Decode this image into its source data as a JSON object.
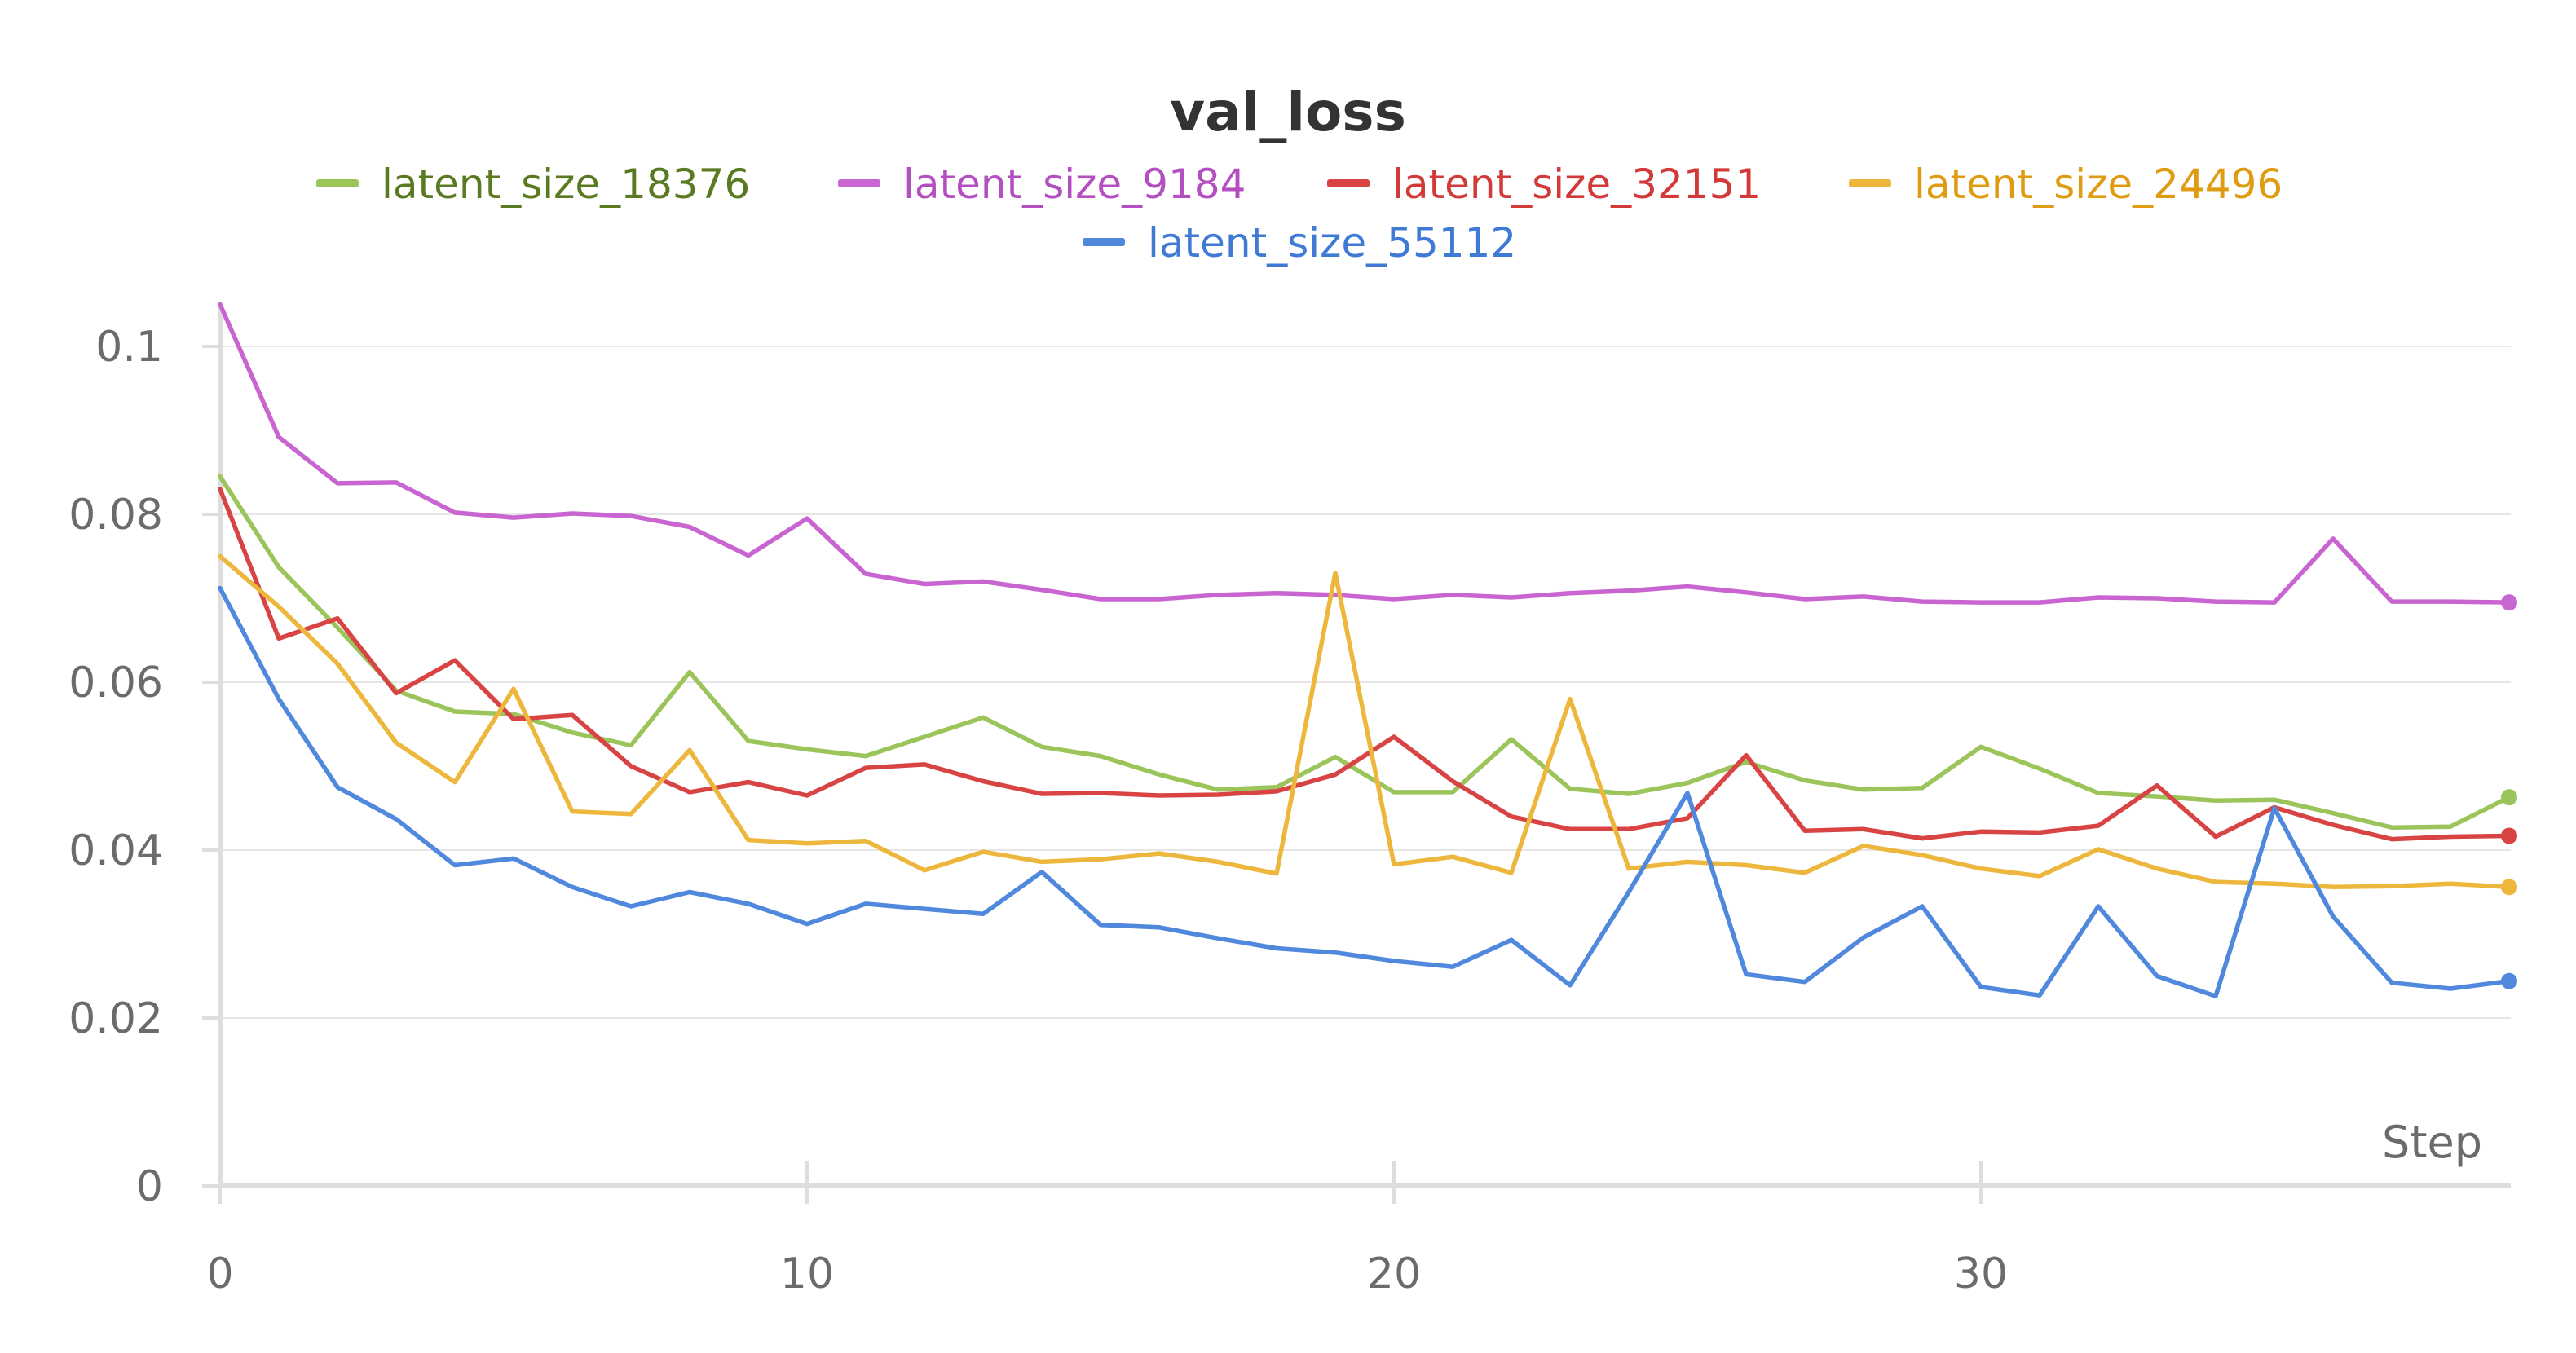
{
  "chart_data": {
    "type": "line",
    "title": "val_loss",
    "xlabel": "Step",
    "ylabel": "",
    "xlim": [
      0,
      39
    ],
    "ylim": [
      0,
      0.105
    ],
    "x_ticks": [
      0,
      10,
      20,
      30
    ],
    "x_tick_labels": [
      "0",
      "10",
      "20",
      "30"
    ],
    "y_ticks": [
      0,
      0.02,
      0.04,
      0.06,
      0.08,
      0.1
    ],
    "y_tick_labels": [
      "0",
      "0.02",
      "0.04",
      "0.06",
      "0.08",
      "0.1"
    ],
    "grid": true,
    "legend_position": "top-center",
    "x": [
      0,
      1,
      2,
      3,
      4,
      5,
      6,
      7,
      8,
      9,
      10,
      11,
      12,
      13,
      14,
      15,
      16,
      17,
      18,
      19,
      20,
      21,
      22,
      23,
      24,
      25,
      26,
      27,
      28,
      29,
      30,
      31,
      32,
      33,
      34,
      35,
      36,
      37,
      38,
      39
    ],
    "series": [
      {
        "name": "latent_size_18376",
        "color": "#9bc45a",
        "text_color": "#5a7a22",
        "values": [
          0.0845,
          0.0737,
          0.0665,
          0.059,
          0.0565,
          0.0562,
          0.054,
          0.0525,
          0.0612,
          0.053,
          0.052,
          0.0512,
          0.0535,
          0.0558,
          0.0523,
          0.0512,
          0.049,
          0.0472,
          0.0475,
          0.0511,
          0.0469,
          0.0469,
          0.0532,
          0.0473,
          0.0467,
          0.048,
          0.0505,
          0.0483,
          0.0472,
          0.0474,
          0.0523,
          0.0497,
          0.0468,
          0.0464,
          0.0459,
          0.046,
          0.0444,
          0.0427,
          0.0428,
          0.0463
        ]
      },
      {
        "name": "latent_size_9184",
        "color": "#c865d1",
        "text_color": "#b34fc0",
        "values": [
          0.105,
          0.0892,
          0.0837,
          0.0838,
          0.0802,
          0.0796,
          0.0801,
          0.0798,
          0.0785,
          0.0751,
          0.0795,
          0.0729,
          0.0717,
          0.072,
          0.071,
          0.0699,
          0.0699,
          0.0704,
          0.0706,
          0.0704,
          0.0699,
          0.0704,
          0.0701,
          0.0706,
          0.0709,
          0.0714,
          0.0707,
          0.0699,
          0.0702,
          0.0696,
          0.0695,
          0.0695,
          0.0701,
          0.07,
          0.0696,
          0.0695,
          0.0771,
          0.0696,
          0.0696,
          0.0695
        ]
      },
      {
        "name": "latent_size_32151",
        "color": "#d84444",
        "text_color": "#d23a3a",
        "values": [
          0.083,
          0.0652,
          0.0676,
          0.0587,
          0.0626,
          0.0556,
          0.0561,
          0.05,
          0.0469,
          0.0481,
          0.0465,
          0.0498,
          0.0502,
          0.0482,
          0.0467,
          0.0468,
          0.0465,
          0.0466,
          0.047,
          0.049,
          0.0535,
          0.0482,
          0.044,
          0.0425,
          0.0425,
          0.0438,
          0.0513,
          0.0423,
          0.0425,
          0.0414,
          0.0422,
          0.0421,
          0.0429,
          0.0477,
          0.0416,
          0.0451,
          0.043,
          0.0413,
          0.0416,
          0.0417
        ]
      },
      {
        "name": "latent_size_24496",
        "color": "#ecb73c",
        "text_color": "#df9c12",
        "values": [
          0.075,
          0.069,
          0.0622,
          0.0528,
          0.0481,
          0.0592,
          0.0446,
          0.0443,
          0.0519,
          0.0412,
          0.0408,
          0.0411,
          0.0376,
          0.0398,
          0.0386,
          0.0389,
          0.0396,
          0.0386,
          0.0372,
          0.073,
          0.0383,
          0.0392,
          0.0373,
          0.058,
          0.0378,
          0.0386,
          0.0382,
          0.0373,
          0.0405,
          0.0394,
          0.0378,
          0.0369,
          0.0401,
          0.0378,
          0.0362,
          0.036,
          0.0356,
          0.0357,
          0.036,
          0.0356
        ]
      },
      {
        "name": "latent_size_55112",
        "color": "#4f88dc",
        "text_color": "#3f7ad4",
        "values": [
          0.0712,
          0.058,
          0.0475,
          0.0437,
          0.0382,
          0.039,
          0.0356,
          0.0333,
          0.035,
          0.0336,
          0.0312,
          0.0336,
          0.033,
          0.0324,
          0.0374,
          0.0311,
          0.0308,
          0.0295,
          0.0283,
          0.0278,
          0.0268,
          0.0261,
          0.0293,
          0.0239,
          0.035,
          0.0468,
          0.0252,
          0.0243,
          0.0296,
          0.0333,
          0.0237,
          0.0227,
          0.0333,
          0.025,
          0.0226,
          0.045,
          0.0321,
          0.0242,
          0.0235,
          0.0244
        ]
      }
    ]
  }
}
